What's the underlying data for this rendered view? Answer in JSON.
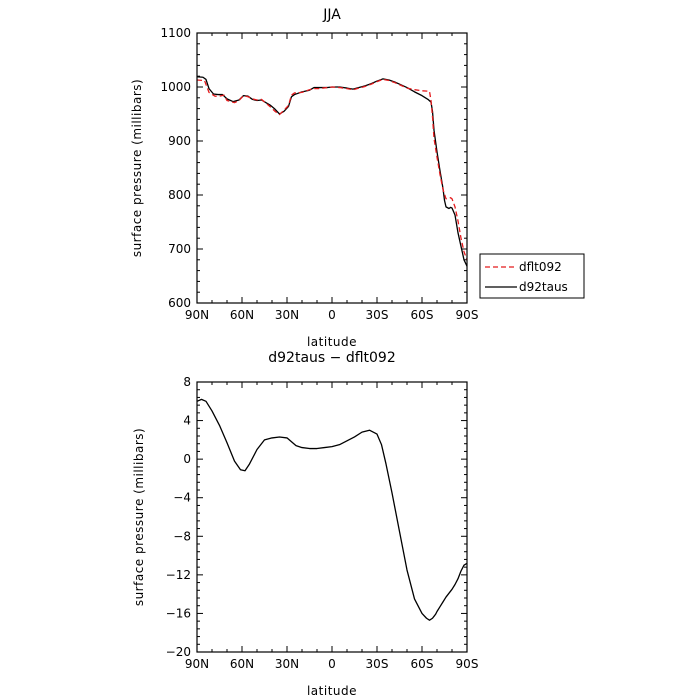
{
  "chart_data": [
    {
      "type": "line",
      "title": "JJA",
      "xlabel": "latitude",
      "ylabel": "surface pressure (millibars)",
      "xlim": [
        -90,
        90
      ],
      "ylim": [
        600,
        1100
      ],
      "x_ticks": [
        {
          "value": -90,
          "label": "90N"
        },
        {
          "value": -60,
          "label": "60N"
        },
        {
          "value": -30,
          "label": "30N"
        },
        {
          "value": 0,
          "label": "0"
        },
        {
          "value": 30,
          "label": "30S"
        },
        {
          "value": 60,
          "label": "60S"
        },
        {
          "value": 90,
          "label": "90S"
        }
      ],
      "y_ticks": [
        600,
        700,
        800,
        900,
        1000,
        1100
      ],
      "legend_placement": "right",
      "series": [
        {
          "name": "dflt092",
          "color": "#e41a1c",
          "dash": "dashed",
          "x": [
            -90,
            -85,
            -82,
            -78,
            -75,
            -72,
            -70,
            -65,
            -62,
            -59,
            -56,
            -53,
            -50,
            -47,
            -44,
            -41,
            -38,
            -35,
            -32,
            -29,
            -27,
            -25,
            -20,
            -15,
            -12,
            -9,
            -6,
            -3,
            0,
            5,
            10,
            14,
            18,
            22,
            26,
            30,
            34,
            38,
            42,
            46,
            50,
            55,
            60,
            65,
            66,
            67,
            68,
            70,
            72,
            74,
            76,
            78,
            79,
            80,
            82,
            84,
            86,
            88,
            90
          ],
          "values": [
            1013,
            1012,
            990,
            983,
            983,
            985,
            975,
            971,
            975,
            984,
            982,
            978,
            976,
            977,
            970,
            963,
            955,
            949,
            957,
            966,
            985,
            989,
            990,
            995,
            997,
            997,
            998,
            999,
            1000,
            999,
            997,
            995,
            998,
            1001,
            1005,
            1010,
            1014,
            1012,
            1008,
            1003,
            998,
            995,
            993,
            992,
            975,
            945,
            905,
            870,
            838,
            810,
            793,
            794,
            795,
            793,
            778,
            752,
            720,
            695,
            680
          ]
        },
        {
          "name": "d92taus",
          "color": "#000000",
          "dash": "solid",
          "x": [
            -90,
            -86,
            -84,
            -82,
            -79,
            -76,
            -73,
            -70,
            -66,
            -62,
            -59,
            -56,
            -53,
            -50,
            -47,
            -44,
            -41,
            -38,
            -35,
            -32,
            -29,
            -27,
            -25,
            -20,
            -15,
            -12,
            -9,
            -6,
            -3,
            0,
            5,
            10,
            14,
            18,
            22,
            26,
            30,
            34,
            38,
            42,
            46,
            50,
            55,
            60,
            64,
            66,
            67,
            68,
            70,
            72,
            74,
            75,
            76,
            78,
            79,
            80,
            82,
            84,
            86,
            88,
            90
          ],
          "values": [
            1019,
            1018,
            1014,
            997,
            987,
            986,
            986,
            978,
            973,
            976,
            984,
            983,
            977,
            975,
            976,
            971,
            966,
            959,
            950,
            955,
            964,
            982,
            986,
            991,
            994,
            999,
            999,
            999,
            999,
            1000,
            1000,
            998,
            996,
            999,
            1002,
            1006,
            1011,
            1015,
            1013,
            1009,
            1004,
            999,
            991,
            984,
            977,
            972,
            955,
            920,
            880,
            845,
            812,
            790,
            778,
            775,
            777,
            776,
            763,
            730,
            705,
            680,
            668
          ]
        }
      ]
    },
    {
      "type": "line",
      "title": "d92taus − dflt092",
      "xlabel": "latitude",
      "ylabel": "surface pressure (millibars)",
      "xlim": [
        -90,
        90
      ],
      "ylim": [
        -20,
        8
      ],
      "x_ticks": [
        {
          "value": -90,
          "label": "90N"
        },
        {
          "value": -60,
          "label": "60N"
        },
        {
          "value": -30,
          "label": "30N"
        },
        {
          "value": 0,
          "label": "0"
        },
        {
          "value": 30,
          "label": "30S"
        },
        {
          "value": 60,
          "label": "60S"
        },
        {
          "value": 90,
          "label": "90S"
        }
      ],
      "y_ticks": [
        -20,
        -16,
        -12,
        -8,
        -4,
        0,
        4,
        8
      ],
      "series": [
        {
          "color": "#000000",
          "dash": "solid",
          "x": [
            -90,
            -87,
            -84,
            -80,
            -75,
            -70,
            -65,
            -61,
            -58,
            -55,
            -50,
            -45,
            -40,
            -35,
            -30,
            -27,
            -24,
            -20,
            -15,
            -10,
            -5,
            0,
            5,
            10,
            15,
            20,
            25,
            30,
            33,
            36,
            40,
            45,
            50,
            55,
            60,
            63,
            65,
            67,
            68,
            69,
            70,
            72,
            74,
            76,
            78,
            80,
            82,
            84,
            86,
            88,
            90
          ],
          "values": [
            6.0,
            6.2,
            6.0,
            5.0,
            3.5,
            1.7,
            -0.2,
            -1.1,
            -1.2,
            -0.5,
            1.0,
            2.0,
            2.2,
            2.3,
            2.2,
            1.8,
            1.4,
            1.2,
            1.1,
            1.1,
            1.2,
            1.3,
            1.5,
            1.9,
            2.3,
            2.8,
            3.0,
            2.6,
            1.5,
            -0.5,
            -3.5,
            -7.5,
            -11.5,
            -14.5,
            -16.0,
            -16.5,
            -16.7,
            -16.5,
            -16.3,
            -16.1,
            -15.8,
            -15.3,
            -14.8,
            -14.3,
            -13.9,
            -13.5,
            -13.0,
            -12.4,
            -11.6,
            -11.0,
            -10.8
          ]
        }
      ]
    }
  ]
}
